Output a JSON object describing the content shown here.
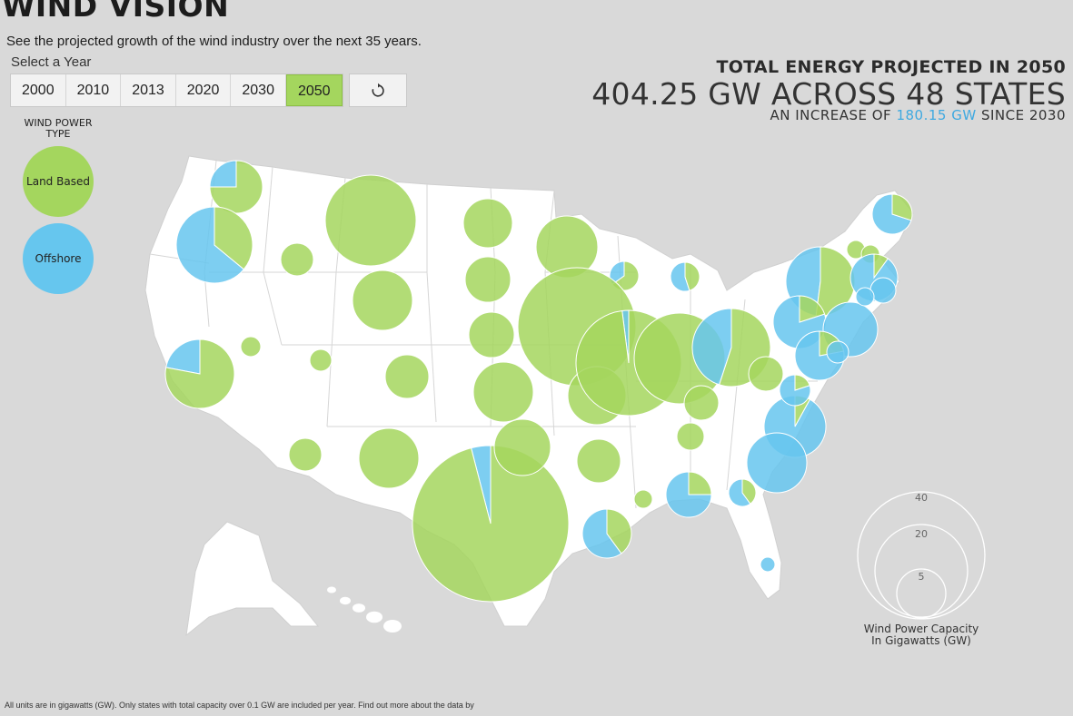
{
  "header": {
    "title": "WIND VISION",
    "subtitle": "See the projected growth of the wind industry over the next 35 years."
  },
  "year_selector": {
    "label": "Select a Year",
    "years": [
      "2000",
      "2010",
      "2013",
      "2020",
      "2030",
      "2050"
    ],
    "selected": "2050",
    "replay_icon": "replay-icon"
  },
  "stats": {
    "heading": "TOTAL ENERGY PROJECTED IN 2050",
    "main": "404.25 GW ACROSS 48 STATES",
    "sub_prefix": "AN INCREASE OF ",
    "sub_value": "180.15 GW",
    "sub_suffix": " SINCE 2030"
  },
  "legend": {
    "title": "WIND POWER TYPE",
    "land_label": "Land Based",
    "offshore_label": "Offshore"
  },
  "size_legend": {
    "values": [
      "40",
      "20",
      "5"
    ],
    "title_line1": "Wind Power Capacity",
    "title_line2": "In Gigawatts (GW)"
  },
  "footnote": "All units are in gigawatts (GW). Only states with total capacity over 0.1 GW are included per year. Find out more about the data by",
  "colors": {
    "land": "#a4d65e",
    "offshore": "#66c6ee",
    "map_fill": "#ffffff",
    "background": "#d9d9d9",
    "accent": "#3fa9e0"
  }
}
